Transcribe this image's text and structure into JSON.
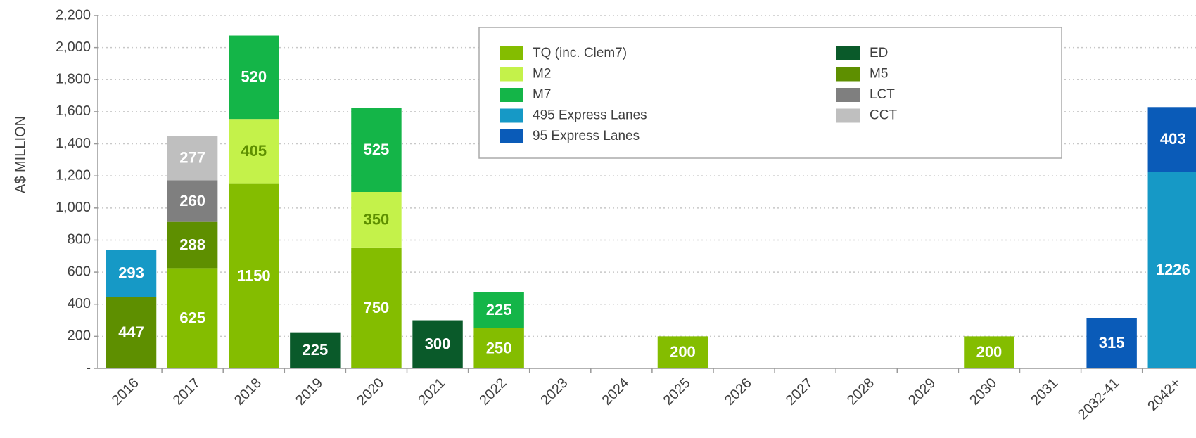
{
  "chart_data": {
    "type": "stacked_bar",
    "y_label": "A$ MILLION",
    "categories": [
      "2016",
      "2017",
      "2018",
      "2019",
      "2020",
      "2021",
      "2022",
      "2023",
      "2024",
      "2025",
      "2026",
      "2027",
      "2028",
      "2029",
      "2030",
      "2031",
      "2032-41",
      "2042+"
    ],
    "series": [
      {
        "name": "TQ (inc. Clem7)",
        "color": "#84bd00",
        "values": [
          null,
          625,
          1150,
          null,
          750,
          null,
          250,
          null,
          null,
          200,
          null,
          null,
          null,
          null,
          200,
          null,
          null,
          null
        ]
      },
      {
        "name": "M2",
        "color": "#c4f24a",
        "values": [
          null,
          null,
          405,
          null,
          350,
          null,
          null,
          null,
          null,
          null,
          null,
          null,
          null,
          null,
          null,
          null,
          null,
          null
        ]
      },
      {
        "name": "M7",
        "color": "#14b548",
        "values": [
          null,
          null,
          520,
          null,
          525,
          null,
          225,
          null,
          null,
          null,
          null,
          null,
          null,
          null,
          null,
          null,
          null,
          null
        ]
      },
      {
        "name": "495 Express Lanes",
        "color": "#1699c6",
        "values": [
          293,
          null,
          null,
          null,
          null,
          null,
          null,
          null,
          null,
          null,
          null,
          null,
          null,
          null,
          null,
          null,
          null,
          1226
        ]
      },
      {
        "name": "95 Express Lanes",
        "color": "#0a5bb8",
        "values": [
          null,
          null,
          null,
          null,
          null,
          null,
          null,
          null,
          null,
          null,
          null,
          null,
          null,
          null,
          null,
          null,
          315,
          403
        ]
      },
      {
        "name": "ED",
        "color": "#0a5a2a",
        "values": [
          null,
          null,
          null,
          225,
          null,
          300,
          null,
          null,
          null,
          null,
          null,
          null,
          null,
          null,
          null,
          null,
          null,
          null
        ]
      },
      {
        "name": "M5",
        "color": "#5e8f00",
        "values": [
          447,
          288,
          null,
          null,
          null,
          null,
          null,
          null,
          null,
          null,
          null,
          null,
          null,
          null,
          null,
          null,
          null,
          null
        ]
      },
      {
        "name": "LCT",
        "color": "#7f7f7f",
        "values": [
          null,
          260,
          null,
          null,
          null,
          null,
          null,
          null,
          null,
          null,
          null,
          null,
          null,
          null,
          null,
          null,
          null,
          null
        ]
      },
      {
        "name": "CCT",
        "color": "#bfbfbf",
        "values": [
          null,
          277,
          null,
          null,
          null,
          null,
          null,
          null,
          null,
          null,
          null,
          null,
          null,
          null,
          null,
          null,
          null,
          null
        ]
      }
    ],
    "ylim": [
      0,
      2200
    ],
    "yticks": [
      {
        "value": 0,
        "label": "-"
      },
      200,
      400,
      600,
      800,
      {
        "value": 1000,
        "label": "1,000"
      },
      {
        "value": 1200,
        "label": "1,200"
      },
      {
        "value": 1400,
        "label": "1,400"
      },
      {
        "value": 1600,
        "label": "1,600"
      },
      {
        "value": 1800,
        "label": "1,800"
      },
      {
        "value": 2000,
        "label": "2,000"
      },
      {
        "value": 2200,
        "label": "2,200"
      }
    ],
    "grid": true,
    "legend": "top"
  }
}
